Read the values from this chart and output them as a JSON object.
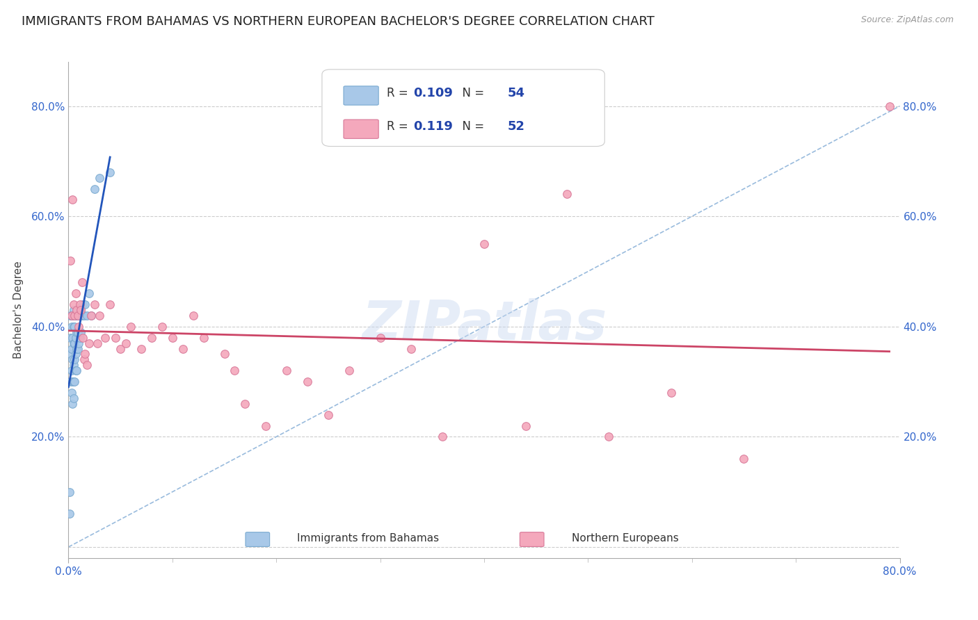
{
  "title": "IMMIGRANTS FROM BAHAMAS VS NORTHERN EUROPEAN BACHELOR'S DEGREE CORRELATION CHART",
  "source": "Source: ZipAtlas.com",
  "ylabel": "Bachelor's Degree",
  "ytick_values": [
    0.0,
    0.2,
    0.4,
    0.6,
    0.8
  ],
  "xlim": [
    0.0,
    0.8
  ],
  "ylim": [
    -0.02,
    0.88
  ],
  "grid_color": "#cccccc",
  "background_color": "#ffffff",
  "watermark": "ZIPatlas",
  "legend_entries": [
    {
      "R": "0.109",
      "N": "54",
      "color": "#a8c8e8",
      "edge_color": "#7aaad0"
    },
    {
      "R": "0.119",
      "N": "52",
      "color": "#f4a8bc",
      "edge_color": "#d87898"
    }
  ],
  "series": [
    {
      "name": "Immigrants from Bahamas",
      "color": "#a8c8e8",
      "edge_color": "#7aaad0",
      "trend_color": "#2255bb",
      "x": [
        0.001,
        0.002,
        0.002,
        0.002,
        0.002,
        0.003,
        0.003,
        0.003,
        0.003,
        0.003,
        0.004,
        0.004,
        0.004,
        0.004,
        0.004,
        0.005,
        0.005,
        0.005,
        0.005,
        0.005,
        0.005,
        0.006,
        0.006,
        0.006,
        0.006,
        0.006,
        0.007,
        0.007,
        0.007,
        0.007,
        0.008,
        0.008,
        0.008,
        0.008,
        0.009,
        0.009,
        0.009,
        0.01,
        0.01,
        0.011,
        0.011,
        0.012,
        0.012,
        0.013,
        0.014,
        0.015,
        0.016,
        0.018,
        0.02,
        0.022,
        0.025,
        0.03,
        0.04,
        0.001
      ],
      "y": [
        0.1,
        0.38,
        0.42,
        0.35,
        0.3,
        0.42,
        0.4,
        0.36,
        0.32,
        0.28,
        0.42,
        0.38,
        0.34,
        0.3,
        0.26,
        0.43,
        0.4,
        0.37,
        0.33,
        0.3,
        0.27,
        0.42,
        0.4,
        0.37,
        0.34,
        0.3,
        0.42,
        0.38,
        0.35,
        0.32,
        0.42,
        0.39,
        0.36,
        0.32,
        0.42,
        0.39,
        0.36,
        0.42,
        0.37,
        0.42,
        0.38,
        0.43,
        0.39,
        0.42,
        0.44,
        0.42,
        0.44,
        0.42,
        0.46,
        0.42,
        0.65,
        0.67,
        0.68,
        0.06
      ]
    },
    {
      "name": "Northern Europeans",
      "color": "#f4a8bc",
      "edge_color": "#d87898",
      "trend_color": "#cc4466",
      "x": [
        0.002,
        0.003,
        0.004,
        0.005,
        0.006,
        0.007,
        0.008,
        0.009,
        0.01,
        0.011,
        0.012,
        0.013,
        0.014,
        0.015,
        0.016,
        0.018,
        0.02,
        0.022,
        0.025,
        0.028,
        0.03,
        0.035,
        0.04,
        0.045,
        0.05,
        0.055,
        0.06,
        0.07,
        0.08,
        0.09,
        0.1,
        0.11,
        0.12,
        0.13,
        0.15,
        0.16,
        0.17,
        0.19,
        0.21,
        0.23,
        0.25,
        0.27,
        0.3,
        0.33,
        0.36,
        0.4,
        0.44,
        0.48,
        0.52,
        0.58,
        0.65,
        0.79
      ],
      "y": [
        0.52,
        0.42,
        0.63,
        0.44,
        0.42,
        0.46,
        0.43,
        0.42,
        0.4,
        0.44,
        0.43,
        0.48,
        0.38,
        0.34,
        0.35,
        0.33,
        0.37,
        0.42,
        0.44,
        0.37,
        0.42,
        0.38,
        0.44,
        0.38,
        0.36,
        0.37,
        0.4,
        0.36,
        0.38,
        0.4,
        0.38,
        0.36,
        0.42,
        0.38,
        0.35,
        0.32,
        0.26,
        0.22,
        0.32,
        0.3,
        0.24,
        0.32,
        0.38,
        0.36,
        0.2,
        0.55,
        0.22,
        0.64,
        0.2,
        0.28,
        0.16,
        0.8
      ]
    }
  ],
  "diagonal_line_color": "#99bbdd",
  "title_fontsize": 13,
  "tick_fontsize": 11,
  "legend_text_color": "#2244aa",
  "legend_R_label_color": "#333333",
  "marker_size": 70,
  "title_color": "#222222",
  "axis_tick_color": "#3366cc"
}
